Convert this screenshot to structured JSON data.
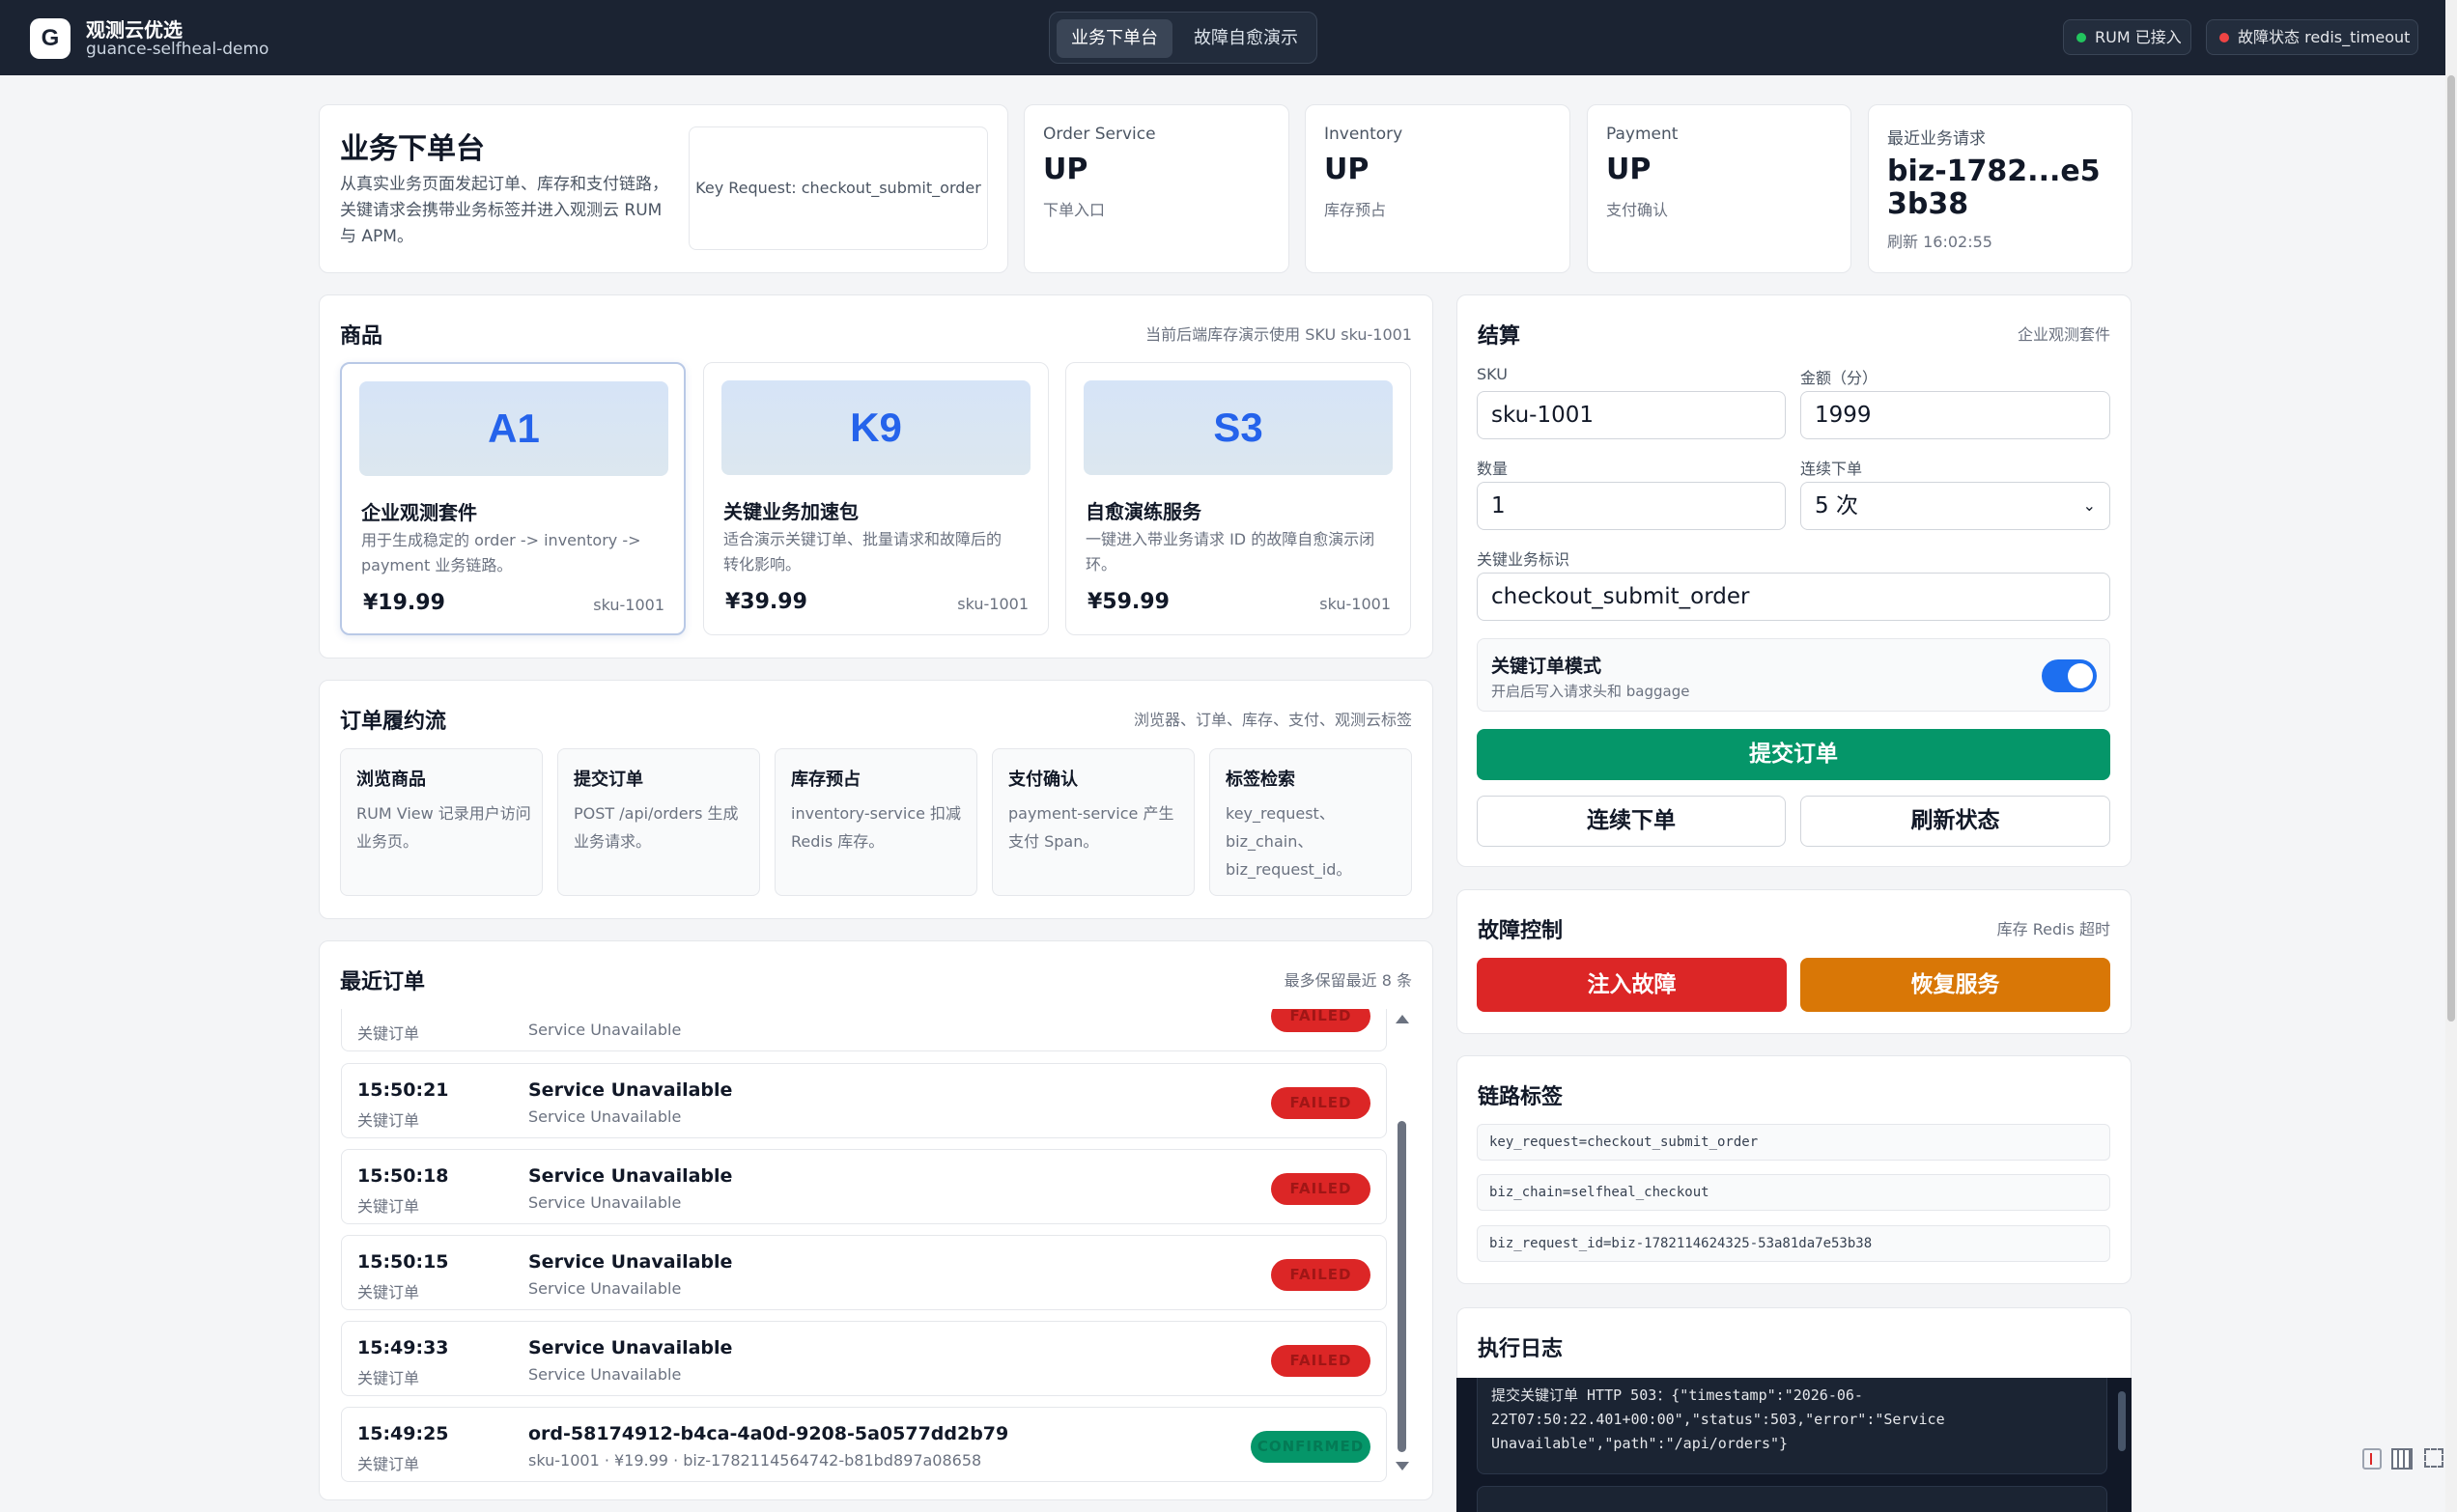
{
  "app": {
    "logo_letter": "G",
    "name": "观测云优选",
    "subtitle": "guance-selfheal-demo"
  },
  "nav": {
    "tabs": [
      {
        "label": "业务下单台",
        "active": true
      },
      {
        "label": "故障自愈演示",
        "active": false
      }
    ]
  },
  "status_pills": [
    {
      "label": "RUM 已接入",
      "color": "#22c55e"
    },
    {
      "label": "故障状态 redis_timeout",
      "color": "#ef4444"
    }
  ],
  "hero": {
    "title": "业务下单台",
    "description": "从真实业务页面发起订单、库存和支付链路，关键请求会携带业务标签并进入观测云 RUM 与 APM。",
    "key_request": "Key Request: checkout_submit_order"
  },
  "services": [
    {
      "name": "Order Service",
      "status": "UP",
      "note": "下单入口"
    },
    {
      "name": "Inventory",
      "status": "UP",
      "note": "库存预占"
    },
    {
      "name": "Payment",
      "status": "UP",
      "note": "支付确认"
    }
  ],
  "latest_request": {
    "label": "最近业务请求",
    "value": "biz-1782...e53b38",
    "refresh": "刷新 16:02:55"
  },
  "products": {
    "title": "商品",
    "note": "当前后端库存演示使用 SKU sku-1001",
    "items": [
      {
        "code": "A1",
        "name": "企业观测套件",
        "desc": "用于生成稳定的 order -> inventory -> payment 业务链路。",
        "price": "¥19.99",
        "sku": "sku-1001",
        "selected": true
      },
      {
        "code": "K9",
        "name": "关键业务加速包",
        "desc": "适合演示关键订单、批量请求和故障后的转化影响。",
        "price": "¥39.99",
        "sku": "sku-1001",
        "selected": false
      },
      {
        "code": "S3",
        "name": "自愈演练服务",
        "desc": "一键进入带业务请求 ID 的故障自愈演示闭环。",
        "price": "¥59.99",
        "sku": "sku-1001",
        "selected": false
      }
    ]
  },
  "fulfillment": {
    "title": "订单履约流",
    "note": "浏览器、订单、库存、支付、观测云标签",
    "steps": [
      {
        "title": "浏览商品",
        "desc": "RUM View 记录用户访问业务页。"
      },
      {
        "title": "提交订单",
        "desc": "POST /api/orders 生成业务请求。"
      },
      {
        "title": "库存预占",
        "desc": "inventory-service 扣减 Redis 库存。"
      },
      {
        "title": "支付确认",
        "desc": "payment-service 产生支付 Span。"
      },
      {
        "title": "标签检索",
        "desc": "key_request、biz_chain、biz_request_id。"
      }
    ]
  },
  "recent_orders": {
    "title": "最近订单",
    "note": "最多保留最近 8 条",
    "partial_row": {
      "type": "关键订单",
      "detail": "Service Unavailable",
      "status": "FAILED"
    },
    "rows": [
      {
        "time": "15:50:21",
        "type": "关键订单",
        "title": "Service Unavailable",
        "detail": "Service Unavailable",
        "status": "FAILED"
      },
      {
        "time": "15:50:18",
        "type": "关键订单",
        "title": "Service Unavailable",
        "detail": "Service Unavailable",
        "status": "FAILED"
      },
      {
        "time": "15:50:15",
        "type": "关键订单",
        "title": "Service Unavailable",
        "detail": "Service Unavailable",
        "status": "FAILED"
      },
      {
        "time": "15:49:33",
        "type": "关键订单",
        "title": "Service Unavailable",
        "detail": "Service Unavailable",
        "status": "FAILED"
      },
      {
        "time": "15:49:25",
        "type": "关键订单",
        "title": "ord-58174912-b4ca-4a0d-9208-5a0577dd2b79",
        "detail": "sku-1001 · ¥19.99 · biz-1782114564742-b81bd897a08658",
        "status": "CONFIRMED"
      }
    ]
  },
  "checkout": {
    "title": "结算",
    "note": "企业观测套件",
    "sku_label": "SKU",
    "sku_value": "sku-1001",
    "amount_label": "金额（分）",
    "amount_value": "1999",
    "qty_label": "数量",
    "qty_value": "1",
    "batch_label": "连续下单",
    "batch_value": "5 次",
    "key_label": "关键业务标识",
    "key_value": "checkout_submit_order",
    "mode_title": "关键订单模式",
    "mode_desc": "开启后写入请求头和 baggage",
    "mode_on": true,
    "submit": "提交订单",
    "batch_submit": "连续下单",
    "refresh": "刷新状态"
  },
  "fault": {
    "title": "故障控制",
    "note": "库存 Redis 超时",
    "inject": "注入故障",
    "recover": "恢复服务",
    "inject_color": "#dc2626",
    "recover_color": "#d97706"
  },
  "trace_tags": {
    "title": "链路标签",
    "items": [
      "key_request=checkout_submit_order",
      "biz_chain=selfheal_checkout",
      "biz_request_id=biz-1782114624325-53a81da7e53b38"
    ]
  },
  "exec_log": {
    "title": "执行日志",
    "entry": "提交关键订单 HTTP 503：{\"timestamp\":\"2026-06-22T07:50:22.401+00:00\",\"status\":503,\"error\":\"Service Unavailable\",\"path\":\"/api/orders\"}"
  },
  "colors": {
    "topbar": "#1b2332",
    "primary": "#059669",
    "accent": "#2563eb"
  }
}
